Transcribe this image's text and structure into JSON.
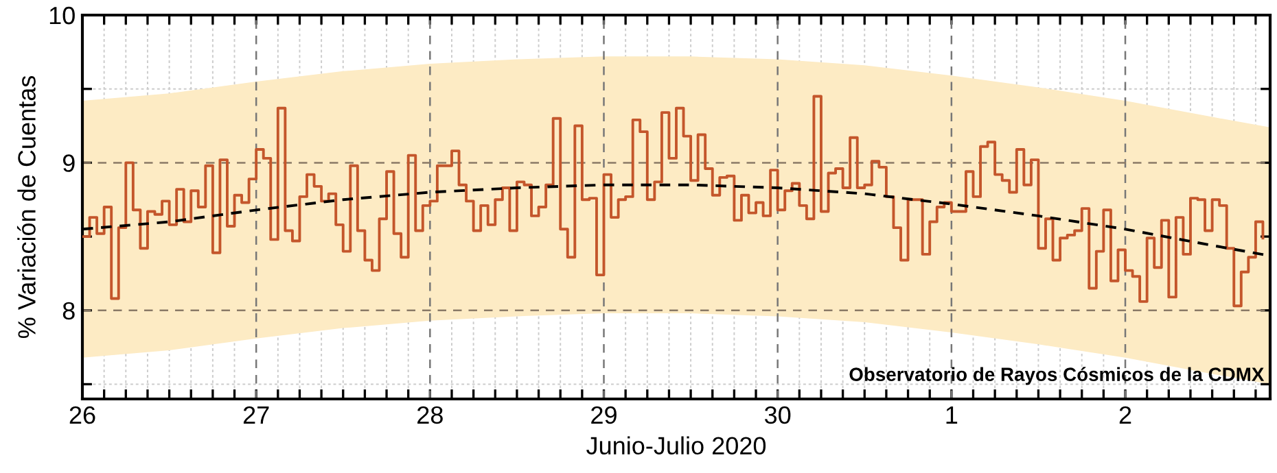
{
  "chart_data": {
    "type": "step",
    "xlabel": "Junio-Julio 2020",
    "ylabel": "% Variación de Cuentas",
    "annotations": [
      "Observatorio de Rayos Cósmicos de la CDMX"
    ],
    "xlim": [
      "2020-06-26T00:00",
      "2020-07-02T20:00"
    ],
    "ylim": [
      7.4,
      10
    ],
    "xticks": [
      {
        "value": "2020-06-26T00:00",
        "label": "26"
      },
      {
        "value": "2020-06-26T03:00",
        "label": null
      },
      {
        "value": "2020-06-26T06:00",
        "label": null
      },
      {
        "value": "2020-06-26T09:00",
        "label": null
      },
      {
        "value": "2020-06-26T12:00",
        "label": null
      },
      {
        "value": "2020-06-26T15:00",
        "label": null
      },
      {
        "value": "2020-06-26T18:00",
        "label": null
      },
      {
        "value": "2020-06-26T21:00",
        "label": null
      },
      {
        "value": "2020-06-27T00:00",
        "label": "27"
      },
      {
        "value": "2020-06-27T03:00",
        "label": null
      },
      {
        "value": "2020-06-27T06:00",
        "label": null
      },
      {
        "value": "2020-06-27T09:00",
        "label": null
      },
      {
        "value": "2020-06-27T12:00",
        "label": null
      },
      {
        "value": "2020-06-27T15:00",
        "label": null
      },
      {
        "value": "2020-06-27T18:00",
        "label": null
      },
      {
        "value": "2020-06-27T21:00",
        "label": null
      },
      {
        "value": "2020-06-28T00:00",
        "label": "28"
      },
      {
        "value": "2020-06-28T03:00",
        "label": null
      },
      {
        "value": "2020-06-28T06:00",
        "label": null
      },
      {
        "value": "2020-06-28T09:00",
        "label": null
      },
      {
        "value": "2020-06-28T12:00",
        "label": null
      },
      {
        "value": "2020-06-28T15:00",
        "label": null
      },
      {
        "value": "2020-06-28T18:00",
        "label": null
      },
      {
        "value": "2020-06-28T21:00",
        "label": null
      },
      {
        "value": "2020-06-29T00:00",
        "label": "29"
      },
      {
        "value": "2020-06-29T03:00",
        "label": null
      },
      {
        "value": "2020-06-29T06:00",
        "label": null
      },
      {
        "value": "2020-06-29T09:00",
        "label": null
      },
      {
        "value": "2020-06-29T12:00",
        "label": null
      },
      {
        "value": "2020-06-29T15:00",
        "label": null
      },
      {
        "value": "2020-06-29T18:00",
        "label": null
      },
      {
        "value": "2020-06-29T21:00",
        "label": null
      },
      {
        "value": "2020-06-30T00:00",
        "label": "30"
      },
      {
        "value": "2020-06-30T03:00",
        "label": null
      },
      {
        "value": "2020-06-30T06:00",
        "label": null
      },
      {
        "value": "2020-06-30T09:00",
        "label": null
      },
      {
        "value": "2020-06-30T12:00",
        "label": null
      },
      {
        "value": "2020-06-30T15:00",
        "label": null
      },
      {
        "value": "2020-06-30T18:00",
        "label": null
      },
      {
        "value": "2020-06-30T21:00",
        "label": null
      },
      {
        "value": "2020-07-01T00:00",
        "label": "1"
      },
      {
        "value": "2020-07-01T03:00",
        "label": null
      },
      {
        "value": "2020-07-01T06:00",
        "label": null
      },
      {
        "value": "2020-07-01T09:00",
        "label": null
      },
      {
        "value": "2020-07-01T12:00",
        "label": null
      },
      {
        "value": "2020-07-01T15:00",
        "label": null
      },
      {
        "value": "2020-07-01T18:00",
        "label": null
      },
      {
        "value": "2020-07-01T21:00",
        "label": null
      },
      {
        "value": "2020-07-02T00:00",
        "label": "2"
      },
      {
        "value": "2020-07-02T03:00",
        "label": null
      },
      {
        "value": "2020-07-02T06:00",
        "label": null
      },
      {
        "value": "2020-07-02T09:00",
        "label": null
      },
      {
        "value": "2020-07-02T12:00",
        "label": null
      },
      {
        "value": "2020-07-02T15:00",
        "label": null
      },
      {
        "value": "2020-07-02T18:00",
        "label": null
      }
    ],
    "yticks": [
      {
        "value": 7.5,
        "label": null
      },
      8,
      {
        "value": 8.5,
        "label": null
      },
      9,
      {
        "value": 9.5,
        "label": null
      },
      10
    ],
    "grid": true,
    "series": [
      {
        "color": "#c4562b",
        "x": [
          "2020-06-26T00:00",
          "2020-06-26T01:00",
          "2020-06-26T02:00",
          "2020-06-26T03:00",
          "2020-06-26T04:00",
          "2020-06-26T05:00",
          "2020-06-26T06:00",
          "2020-06-26T07:00",
          "2020-06-26T08:00",
          "2020-06-26T09:00",
          "2020-06-26T10:00",
          "2020-06-26T11:00",
          "2020-06-26T12:00",
          "2020-06-26T13:00",
          "2020-06-26T14:00",
          "2020-06-26T15:00",
          "2020-06-26T16:00",
          "2020-06-26T17:00",
          "2020-06-26T18:00",
          "2020-06-26T19:00",
          "2020-06-26T20:00",
          "2020-06-26T21:00",
          "2020-06-26T22:00",
          "2020-06-26T23:00",
          "2020-06-27T00:00",
          "2020-06-27T01:00",
          "2020-06-27T02:00",
          "2020-06-27T03:00",
          "2020-06-27T04:00",
          "2020-06-27T05:00",
          "2020-06-27T06:00",
          "2020-06-27T07:00",
          "2020-06-27T08:00",
          "2020-06-27T09:00",
          "2020-06-27T10:00",
          "2020-06-27T11:00",
          "2020-06-27T12:00",
          "2020-06-27T13:00",
          "2020-06-27T14:00",
          "2020-06-27T15:00",
          "2020-06-27T16:00",
          "2020-06-27T17:00",
          "2020-06-27T18:00",
          "2020-06-27T19:00",
          "2020-06-27T20:00",
          "2020-06-27T21:00",
          "2020-06-27T22:00",
          "2020-06-27T23:00",
          "2020-06-28T00:00",
          "2020-06-28T01:00",
          "2020-06-28T02:00",
          "2020-06-28T03:00",
          "2020-06-28T04:00",
          "2020-06-28T05:00",
          "2020-06-28T06:00",
          "2020-06-28T07:00",
          "2020-06-28T08:00",
          "2020-06-28T09:00",
          "2020-06-28T10:00",
          "2020-06-28T11:00",
          "2020-06-28T12:00",
          "2020-06-28T13:00",
          "2020-06-28T14:00",
          "2020-06-28T15:00",
          "2020-06-28T16:00",
          "2020-06-28T17:00",
          "2020-06-28T18:00",
          "2020-06-28T19:00",
          "2020-06-28T20:00",
          "2020-06-28T21:00",
          "2020-06-28T22:00",
          "2020-06-28T23:00",
          "2020-06-29T00:00",
          "2020-06-29T01:00",
          "2020-06-29T02:00",
          "2020-06-29T03:00",
          "2020-06-29T04:00",
          "2020-06-29T05:00",
          "2020-06-29T06:00",
          "2020-06-29T07:00",
          "2020-06-29T08:00",
          "2020-06-29T09:00",
          "2020-06-29T10:00",
          "2020-06-29T11:00",
          "2020-06-29T12:00",
          "2020-06-29T13:00",
          "2020-06-29T14:00",
          "2020-06-29T15:00",
          "2020-06-29T16:00",
          "2020-06-29T17:00",
          "2020-06-29T18:00",
          "2020-06-29T19:00",
          "2020-06-29T20:00",
          "2020-06-29T21:00",
          "2020-06-29T22:00",
          "2020-06-29T23:00",
          "2020-06-30T00:00",
          "2020-06-30T01:00",
          "2020-06-30T02:00",
          "2020-06-30T03:00",
          "2020-06-30T04:00",
          "2020-06-30T05:00",
          "2020-06-30T06:00",
          "2020-06-30T07:00",
          "2020-06-30T08:00",
          "2020-06-30T09:00",
          "2020-06-30T10:00",
          "2020-06-30T11:00",
          "2020-06-30T12:00",
          "2020-06-30T13:00",
          "2020-06-30T14:00",
          "2020-06-30T15:00",
          "2020-06-30T16:00",
          "2020-06-30T17:00",
          "2020-06-30T18:00",
          "2020-06-30T19:00",
          "2020-06-30T20:00",
          "2020-06-30T21:00",
          "2020-06-30T22:00",
          "2020-06-30T23:00",
          "2020-07-01T00:00",
          "2020-07-01T01:00",
          "2020-07-01T02:00",
          "2020-07-01T03:00",
          "2020-07-01T04:00",
          "2020-07-01T05:00",
          "2020-07-01T06:00",
          "2020-07-01T07:00",
          "2020-07-01T08:00",
          "2020-07-01T09:00",
          "2020-07-01T10:00",
          "2020-07-01T11:00",
          "2020-07-01T12:00",
          "2020-07-01T13:00",
          "2020-07-01T14:00",
          "2020-07-01T15:00",
          "2020-07-01T16:00",
          "2020-07-01T17:00",
          "2020-07-01T18:00",
          "2020-07-01T19:00",
          "2020-07-01T20:00",
          "2020-07-01T21:00",
          "2020-07-01T22:00",
          "2020-07-01T23:00",
          "2020-07-02T00:00",
          "2020-07-02T01:00",
          "2020-07-02T02:00",
          "2020-07-02T03:00",
          "2020-07-02T04:00",
          "2020-07-02T05:00",
          "2020-07-02T06:00",
          "2020-07-02T07:00",
          "2020-07-02T08:00",
          "2020-07-02T09:00",
          "2020-07-02T10:00",
          "2020-07-02T11:00",
          "2020-07-02T12:00",
          "2020-07-02T13:00",
          "2020-07-02T14:00",
          "2020-07-02T15:00",
          "2020-07-02T16:00",
          "2020-07-02T17:00",
          "2020-07-02T18:00",
          "2020-07-02T19:00"
        ],
        "values": [
          8.5,
          8.63,
          8.52,
          8.7,
          8.08,
          8.56,
          9.0,
          8.68,
          8.42,
          8.67,
          8.65,
          8.74,
          8.58,
          8.82,
          8.6,
          8.81,
          8.7,
          8.98,
          8.39,
          9.02,
          8.57,
          8.78,
          8.73,
          8.89,
          9.09,
          9.03,
          8.48,
          9.37,
          8.54,
          8.47,
          8.77,
          8.92,
          8.84,
          8.74,
          8.79,
          8.58,
          8.4,
          8.98,
          8.54,
          8.34,
          8.27,
          8.62,
          8.94,
          8.52,
          8.36,
          9.05,
          8.54,
          8.71,
          8.74,
          8.98,
          8.98,
          9.08,
          8.85,
          8.74,
          8.54,
          8.71,
          8.58,
          8.75,
          8.83,
          8.54,
          8.87,
          8.85,
          8.64,
          8.7,
          8.85,
          9.3,
          8.55,
          8.36,
          9.25,
          8.75,
          8.76,
          8.24,
          8.92,
          8.63,
          8.75,
          8.77,
          9.29,
          9.21,
          8.75,
          8.87,
          9.34,
          9.03,
          9.37,
          9.18,
          8.88,
          9.19,
          8.96,
          8.78,
          8.9,
          8.91,
          8.61,
          8.78,
          8.66,
          8.73,
          8.64,
          8.95,
          8.68,
          8.81,
          8.86,
          8.71,
          8.62,
          9.45,
          8.67,
          8.93,
          8.96,
          8.83,
          9.17,
          8.83,
          8.85,
          9.01,
          8.97,
          8.77,
          8.56,
          8.34,
          8.75,
          8.75,
          8.38,
          8.6,
          8.7,
          8.73,
          8.67,
          8.67,
          8.94,
          8.77,
          9.11,
          9.14,
          8.92,
          8.88,
          8.8,
          9.09,
          8.85,
          9.02,
          8.42,
          8.62,
          8.34,
          8.49,
          8.51,
          8.54,
          8.69,
          8.15,
          8.4,
          8.68,
          8.2,
          8.41,
          8.27,
          8.23,
          8.06,
          8.49,
          8.29,
          8.61,
          8.09,
          8.63,
          8.38,
          8.76,
          8.75,
          8.54,
          8.75,
          8.71,
          8.42,
          8.03,
          8.26,
          8.36,
          8.6,
          8.49
        ]
      },
      {
        "type": "line",
        "color": "#000000",
        "line_style": "dashed",
        "x": [
          "2020-06-26T00:00",
          "2020-06-26T12:00",
          "2020-06-27T00:00",
          "2020-06-27T12:00",
          "2020-06-28T00:00",
          "2020-06-28T12:00",
          "2020-06-29T00:00",
          "2020-06-29T12:00",
          "2020-06-30T00:00",
          "2020-06-30T12:00",
          "2020-07-01T00:00",
          "2020-07-01T12:00",
          "2020-07-02T00:00",
          "2020-07-02T12:00",
          "2020-07-02T20:00"
        ],
        "values": [
          8.55,
          8.6,
          8.68,
          8.75,
          8.8,
          8.83,
          8.85,
          8.85,
          8.83,
          8.79,
          8.72,
          8.64,
          8.55,
          8.44,
          8.37
        ],
        "lower": [
          7.68,
          7.73,
          7.81,
          7.88,
          7.93,
          7.96,
          7.98,
          7.98,
          7.96,
          7.92,
          7.85,
          7.77,
          7.68,
          7.57,
          7.5
        ],
        "upper": [
          9.42,
          9.47,
          9.55,
          9.62,
          9.67,
          9.7,
          9.72,
          9.72,
          9.7,
          9.66,
          9.59,
          9.51,
          9.42,
          9.31,
          9.24
        ]
      }
    ]
  }
}
